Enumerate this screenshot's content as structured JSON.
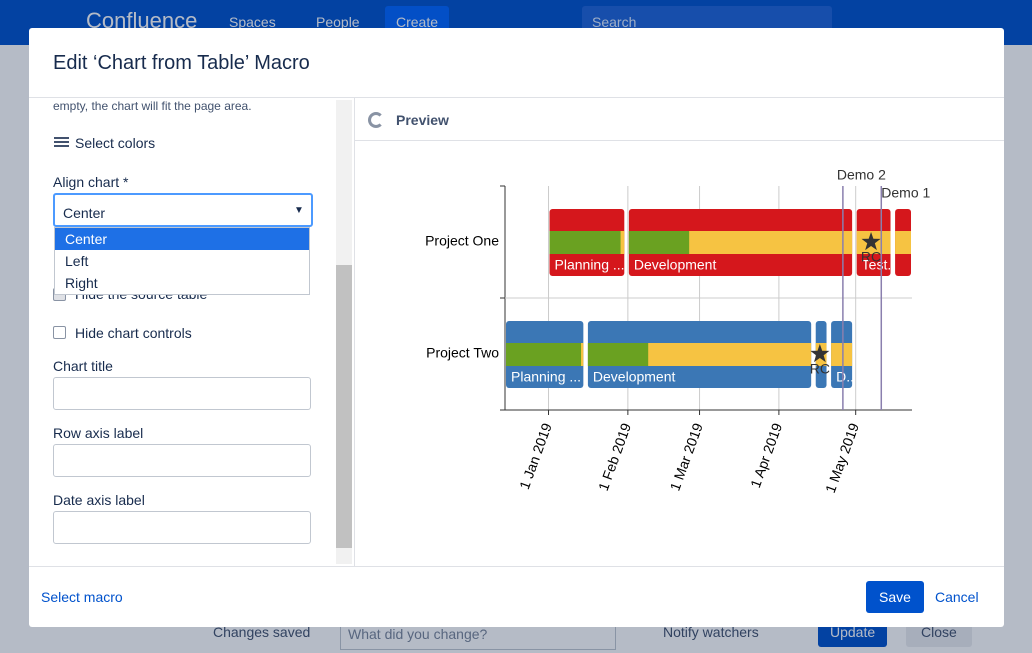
{
  "nav": {
    "brand": "Confluence",
    "spaces": "Spaces",
    "people": "People",
    "create": "Create",
    "search": "Search"
  },
  "bottom_bar": {
    "status": "Changes saved",
    "comment_placeholder": "What did you change?",
    "notify": "Notify watchers",
    "update": "Update",
    "close": "Close"
  },
  "dialog": {
    "title": "Edit ‘Chart from Table’ Macro",
    "form": {
      "hint": "empty, the chart will fit the page area.",
      "select_colors": "Select colors",
      "align_label": "Align chart *",
      "align_value": "Center",
      "align_options": [
        "Center",
        "Left",
        "Right"
      ],
      "hide_source": "Hide the source table",
      "hide_controls": "Hide chart controls",
      "chart_title": "Chart title",
      "row_axis": "Row axis label",
      "date_axis": "Date axis label"
    },
    "preview": {
      "heading": "Preview",
      "chart": {
        "type": "gantt",
        "grid": true,
        "xlim": [
          "2018-12-15",
          "2019-05-23"
        ],
        "xticks": [
          {
            "value": "2019-01-01",
            "label": "1 Jan 2019"
          },
          {
            "value": "2019-02-01",
            "label": "1 Feb 2019"
          },
          {
            "value": "2019-03-01",
            "label": "1 Mar 2019"
          },
          {
            "value": "2019-04-01",
            "label": "1 Apr 2019"
          },
          {
            "value": "2019-05-01",
            "label": "1 May 2019"
          }
        ],
        "done_color": "#6aa121",
        "todo_color": "#f6c342",
        "rows": [
          {
            "name": "Project One",
            "color": "#d5171c",
            "phases": [
              {
                "name": "Planning ...",
                "start": "2019-01-01",
                "end": "2019-01-31",
                "progress": 95
              },
              {
                "name": "Development",
                "start": "2019-02-01",
                "end": "2019-04-30",
                "progress": 27
              },
              {
                "name": "Test..",
                "start": "2019-05-01",
                "end": "2019-05-15",
                "progress": 0
              },
              {
                "name": null,
                "start": "2019-05-16",
                "end": "2019-05-23",
                "progress": 0
              }
            ],
            "milestones": [
              {
                "name": "RC",
                "date": "2019-05-07"
              }
            ]
          },
          {
            "name": "Project Two",
            "color": "#3b77b5",
            "phases": [
              {
                "name": "Planning ...",
                "start": "2018-12-15",
                "end": "2019-01-15",
                "progress": 97
              },
              {
                "name": "Development",
                "start": "2019-01-16",
                "end": "2019-04-14",
                "progress": 27
              },
              {
                "name": null,
                "start": "2019-04-15",
                "end": "2019-04-20",
                "progress": 0
              },
              {
                "name": "D..",
                "start": "2019-04-21",
                "end": "2019-04-30",
                "progress": 0
              }
            ],
            "milestones": [
              {
                "name": "RC",
                "date": "2019-04-17"
              }
            ]
          }
        ],
        "markers": [
          {
            "name": "Demo 2",
            "date": "2019-04-26"
          },
          {
            "name": "Demo 1",
            "date": "2019-05-11"
          }
        ]
      }
    },
    "footer": {
      "select_macro": "Select macro",
      "save": "Save",
      "cancel": "Cancel"
    }
  }
}
